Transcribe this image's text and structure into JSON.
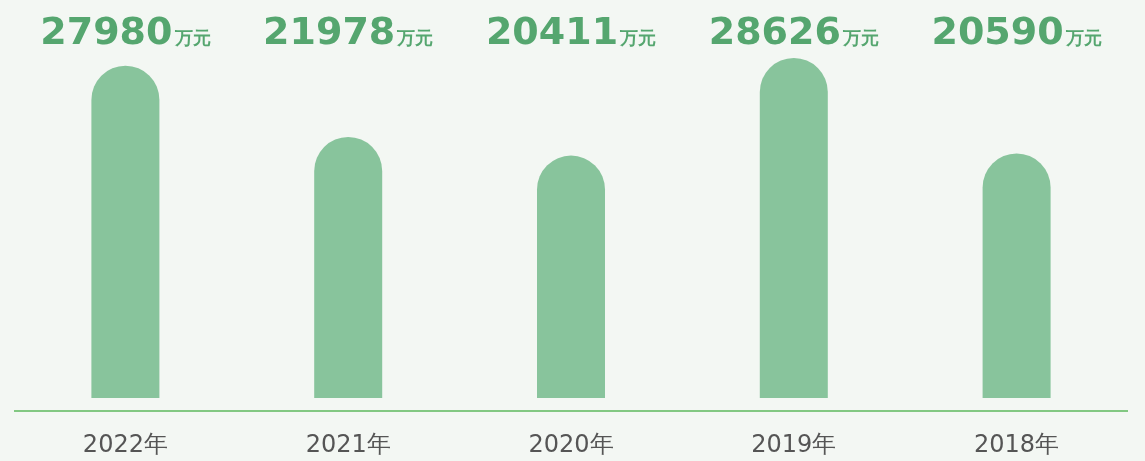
{
  "chart_data": {
    "type": "bar",
    "categories": [
      "2022年",
      "2021年",
      "2020年",
      "2019年",
      "2018年"
    ],
    "values": [
      27980,
      21978,
      20411,
      28626,
      20590
    ],
    "value_labels": [
      "27980万元",
      "21978万元",
      "20411万元",
      "28626万元",
      "20590万元"
    ],
    "color": "#88c49c"
  }
}
